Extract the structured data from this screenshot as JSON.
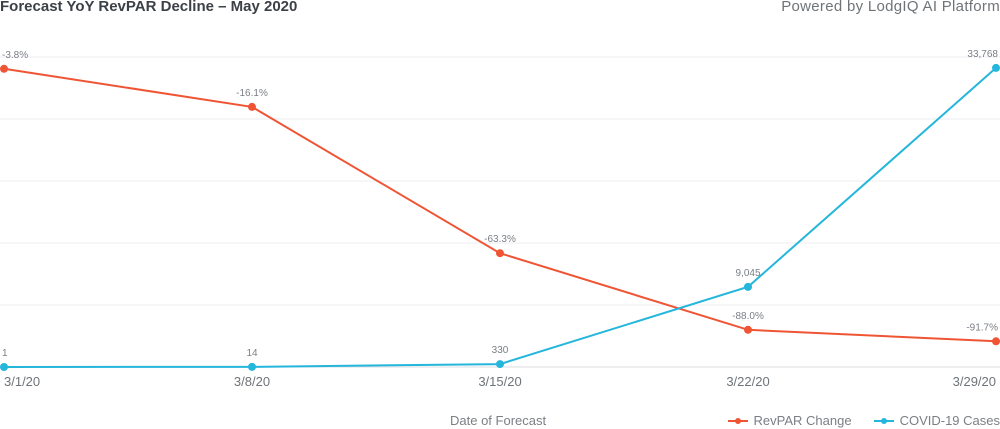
{
  "header": {
    "title": "Forecast YoY RevPAR Decline – May 2020",
    "powered_by": "Powered by LodgIQ AI Platform"
  },
  "chart_data": {
    "type": "line",
    "title": "Forecast YoY RevPAR Decline – May 2020",
    "xlabel": "Date of Forecast",
    "ylabel": "",
    "categories": [
      "3/1/20",
      "3/8/20",
      "3/15/20",
      "3/22/20",
      "3/29/20"
    ],
    "grid": "horizontal",
    "legend_position": "bottom-right",
    "series": [
      {
        "name": "RevPAR Change",
        "color": "#ef5534",
        "values": [
          -3.8,
          -16.1,
          -63.3,
          -88.0,
          -91.7
        ],
        "labels": [
          "-3.8%",
          "-16.1%",
          "-63.3%",
          "-88.0%",
          "-91.7%"
        ],
        "ylim": [
          -100,
          0
        ]
      },
      {
        "name": "COVID-19 Cases",
        "color": "#25b6dc",
        "values": [
          1,
          14,
          330,
          9045,
          33768
        ],
        "labels": [
          "1",
          "14",
          "330",
          "9,045",
          "33,768"
        ],
        "ylim": [
          0,
          35000
        ]
      }
    ]
  }
}
